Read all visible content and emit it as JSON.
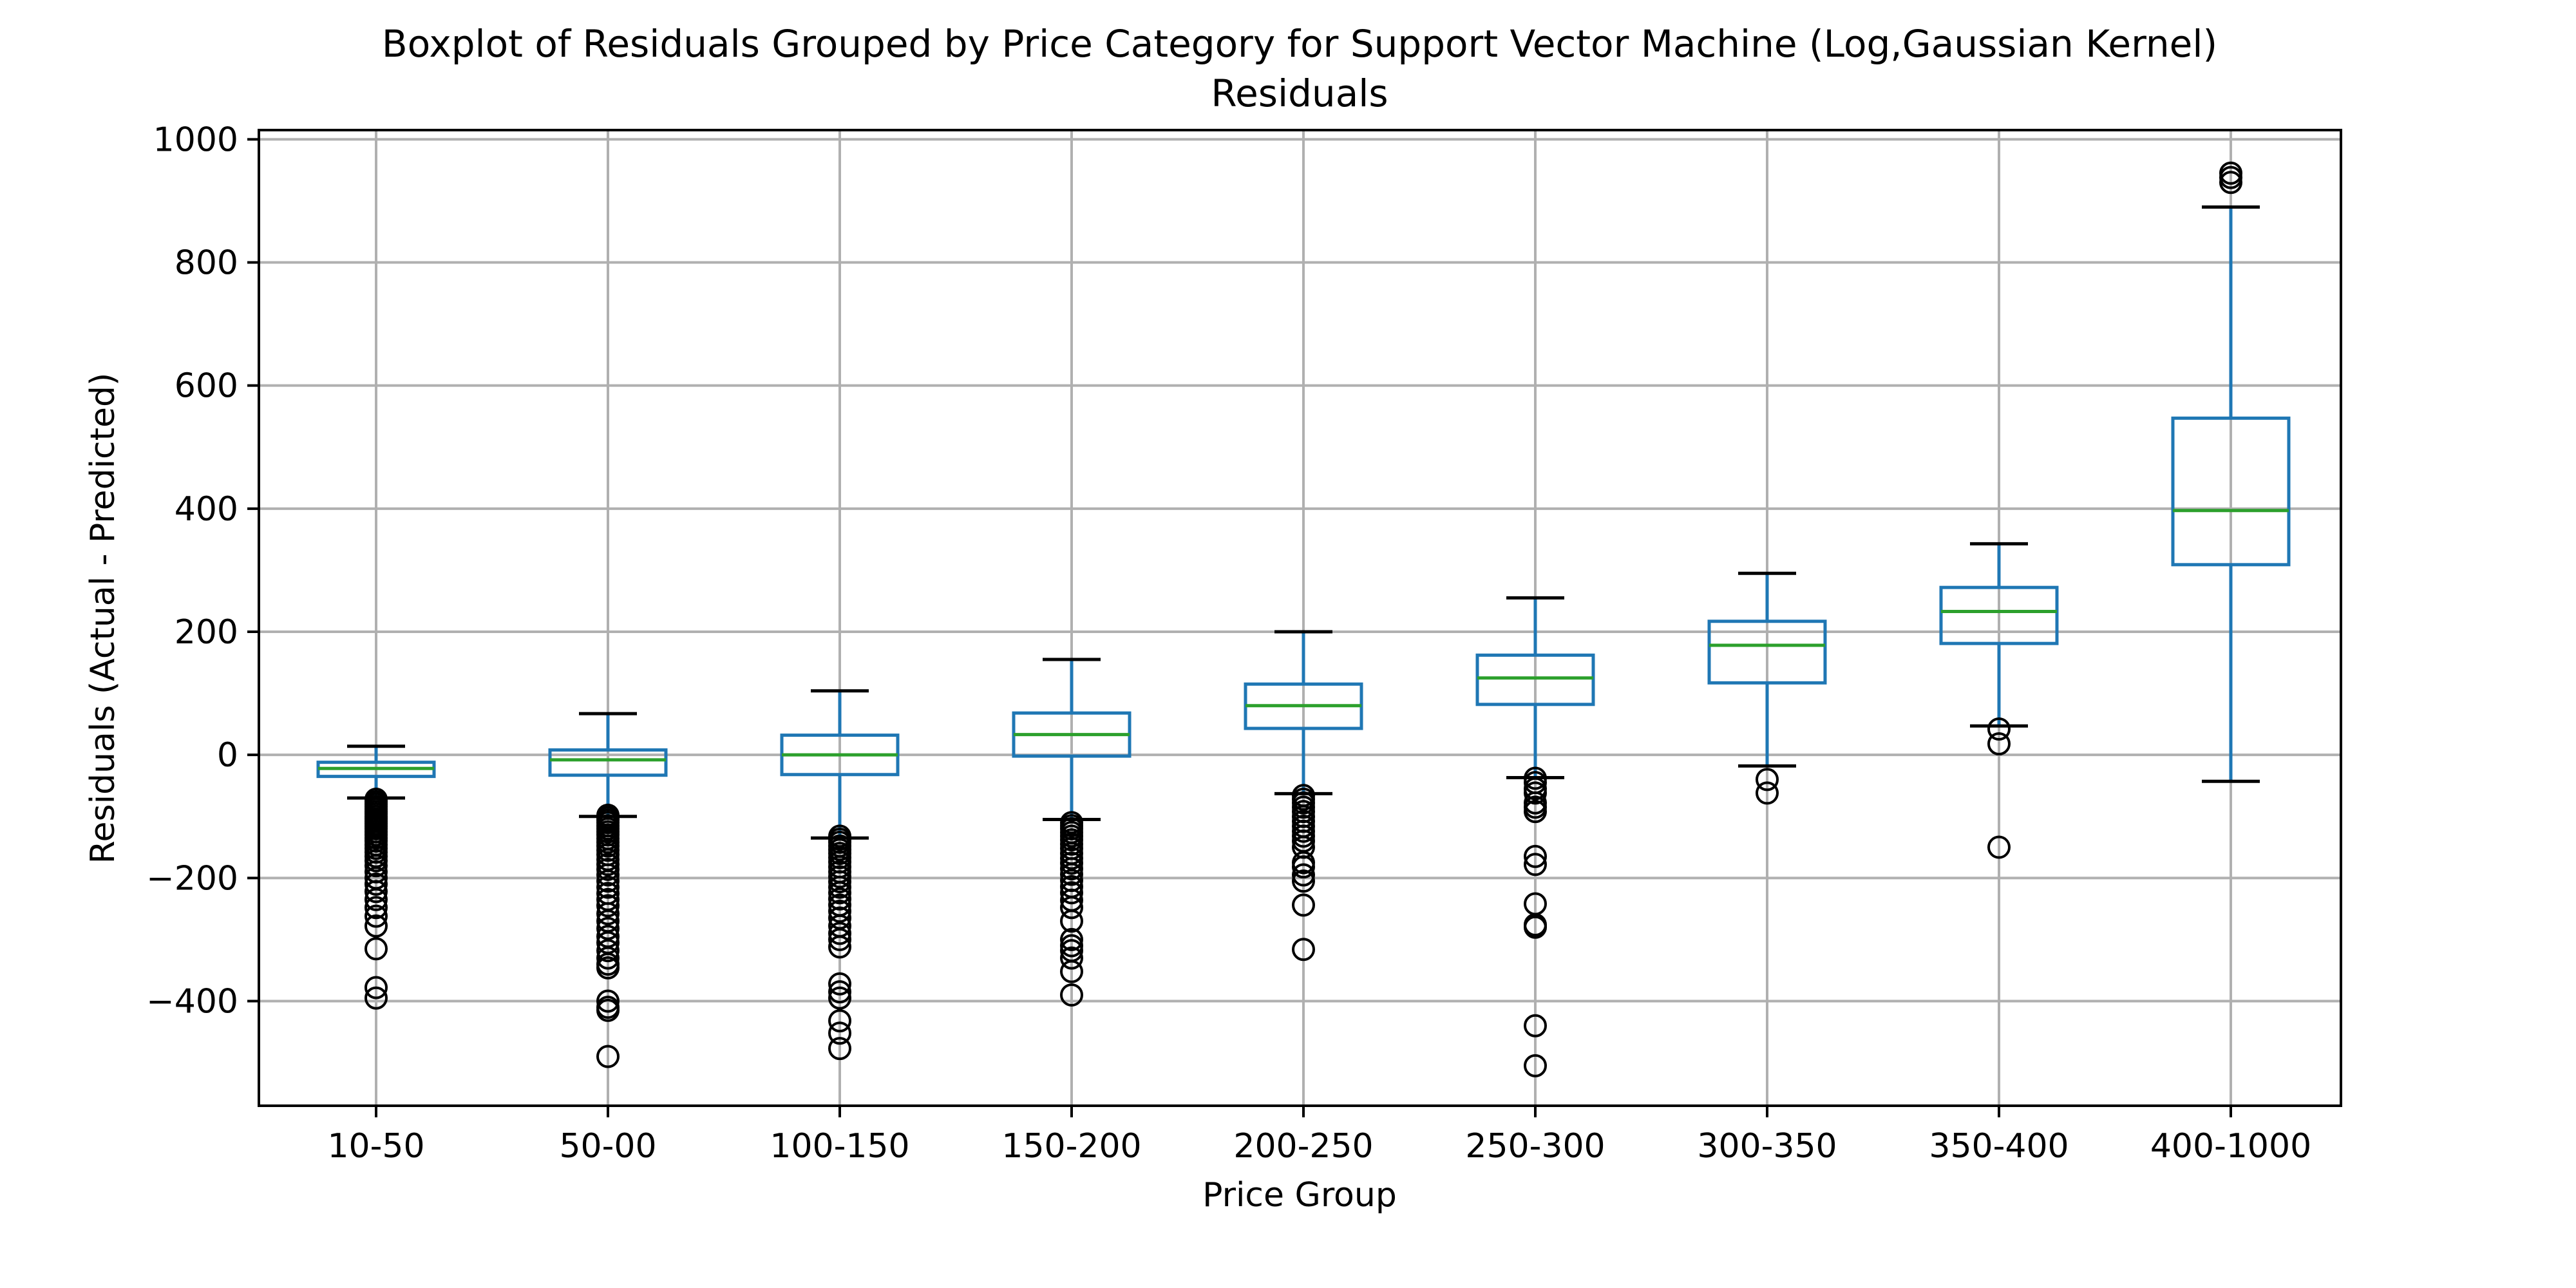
{
  "chart_data": {
    "type": "box",
    "title": "Boxplot of Residuals Grouped by Price Category for Support Vector Machine (Log,Gaussian Kernel)",
    "subtitle": "Residuals",
    "xlabel": "Price Group",
    "ylabel": "Residuals (Actual - Predicted)",
    "ylim": [
      -570,
      1015
    ],
    "yticks": [
      {
        "value": 1000,
        "label": "1000"
      },
      {
        "value": 800,
        "label": "800"
      },
      {
        "value": 600,
        "label": "600"
      },
      {
        "value": 400,
        "label": "400"
      },
      {
        "value": 200,
        "label": "200"
      },
      {
        "value": 0,
        "label": "0"
      },
      {
        "value": -200,
        "label": "−200"
      },
      {
        "value": -400,
        "label": "−400"
      }
    ],
    "grid": true,
    "colors": {
      "box": "#1f77b4",
      "median": "#2ca02c",
      "whisker_cap": "#000000",
      "outlier": "#000000",
      "grid": "#b0b0b0"
    },
    "categories": [
      "10-50",
      "50-00",
      "100-150",
      "150-200",
      "200-250",
      "250-300",
      "300-350",
      "350-400",
      "400-1000"
    ],
    "boxes": [
      {
        "whisker_low": -70,
        "q1": -35,
        "median": -22,
        "q3": -12,
        "whisker_high": 14,
        "outliers": [
          -72,
          -76,
          -80,
          -84,
          -88,
          -92,
          -96,
          -100,
          -104,
          -108,
          -112,
          -116,
          -120,
          -125,
          -130,
          -135,
          -140,
          -146,
          -152,
          -158,
          -165,
          -172,
          -180,
          -190,
          -200,
          -210,
          -222,
          -235,
          -248,
          -262,
          -278,
          -315,
          -378,
          -395
        ]
      },
      {
        "whisker_low": -100,
        "q1": -33,
        "median": -8,
        "q3": 8,
        "whisker_high": 67,
        "outliers": [
          -98,
          -102,
          -106,
          -110,
          -115,
          -120,
          -125,
          -130,
          -136,
          -142,
          -148,
          -155,
          -162,
          -170,
          -178,
          -186,
          -195,
          -205,
          -215,
          -225,
          -235,
          -245,
          -258,
          -270,
          -282,
          -295,
          -305,
          -318,
          -330,
          -340,
          -346,
          -400,
          -410,
          -415,
          -490
        ]
      },
      {
        "whisker_low": -135,
        "q1": -32,
        "median": 0,
        "q3": 32,
        "whisker_high": 104,
        "outliers": [
          -132,
          -137,
          -142,
          -148,
          -154,
          -160,
          -167,
          -174,
          -182,
          -190,
          -198,
          -206,
          -215,
          -224,
          -234,
          -244,
          -254,
          -265,
          -278,
          -290,
          -300,
          -312,
          -372,
          -385,
          -395,
          -432,
          -452,
          -477
        ]
      },
      {
        "whisker_low": -105,
        "q1": -2,
        "median": 33,
        "q3": 68,
        "whisker_high": 155,
        "outliers": [
          -110,
          -115,
          -120,
          -126,
          -132,
          -138,
          -145,
          -152,
          -160,
          -168,
          -176,
          -185,
          -194,
          -204,
          -214,
          -224,
          -236,
          -248,
          -270,
          -300,
          -310,
          -318,
          -330,
          -352,
          -390
        ]
      },
      {
        "whisker_low": -63,
        "q1": 43,
        "median": 80,
        "q3": 115,
        "whisker_high": 200,
        "outliers": [
          -66,
          -72,
          -78,
          -85,
          -92,
          -100,
          -108,
          -116,
          -124,
          -132,
          -140,
          -150,
          -175,
          -182,
          -195,
          -205,
          -244,
          -316
        ]
      },
      {
        "whisker_low": -37,
        "q1": 82,
        "median": 125,
        "q3": 162,
        "whisker_high": 255,
        "outliers": [
          -38,
          -45,
          -55,
          -62,
          -78,
          -85,
          -92,
          -165,
          -178,
          -242,
          -276,
          -280,
          -440,
          -505
        ]
      },
      {
        "whisker_low": -18,
        "q1": 117,
        "median": 178,
        "q3": 217,
        "whisker_high": 295,
        "outliers": [
          -40,
          -62
        ]
      },
      {
        "whisker_low": 47,
        "q1": 181,
        "median": 233,
        "q3": 272,
        "whisker_high": 343,
        "outliers": [
          42,
          18,
          -150
        ]
      },
      {
        "whisker_low": -43,
        "q1": 309,
        "median": 397,
        "q3": 547,
        "whisker_high": 890,
        "outliers": [
          930,
          938,
          945
        ]
      }
    ]
  }
}
